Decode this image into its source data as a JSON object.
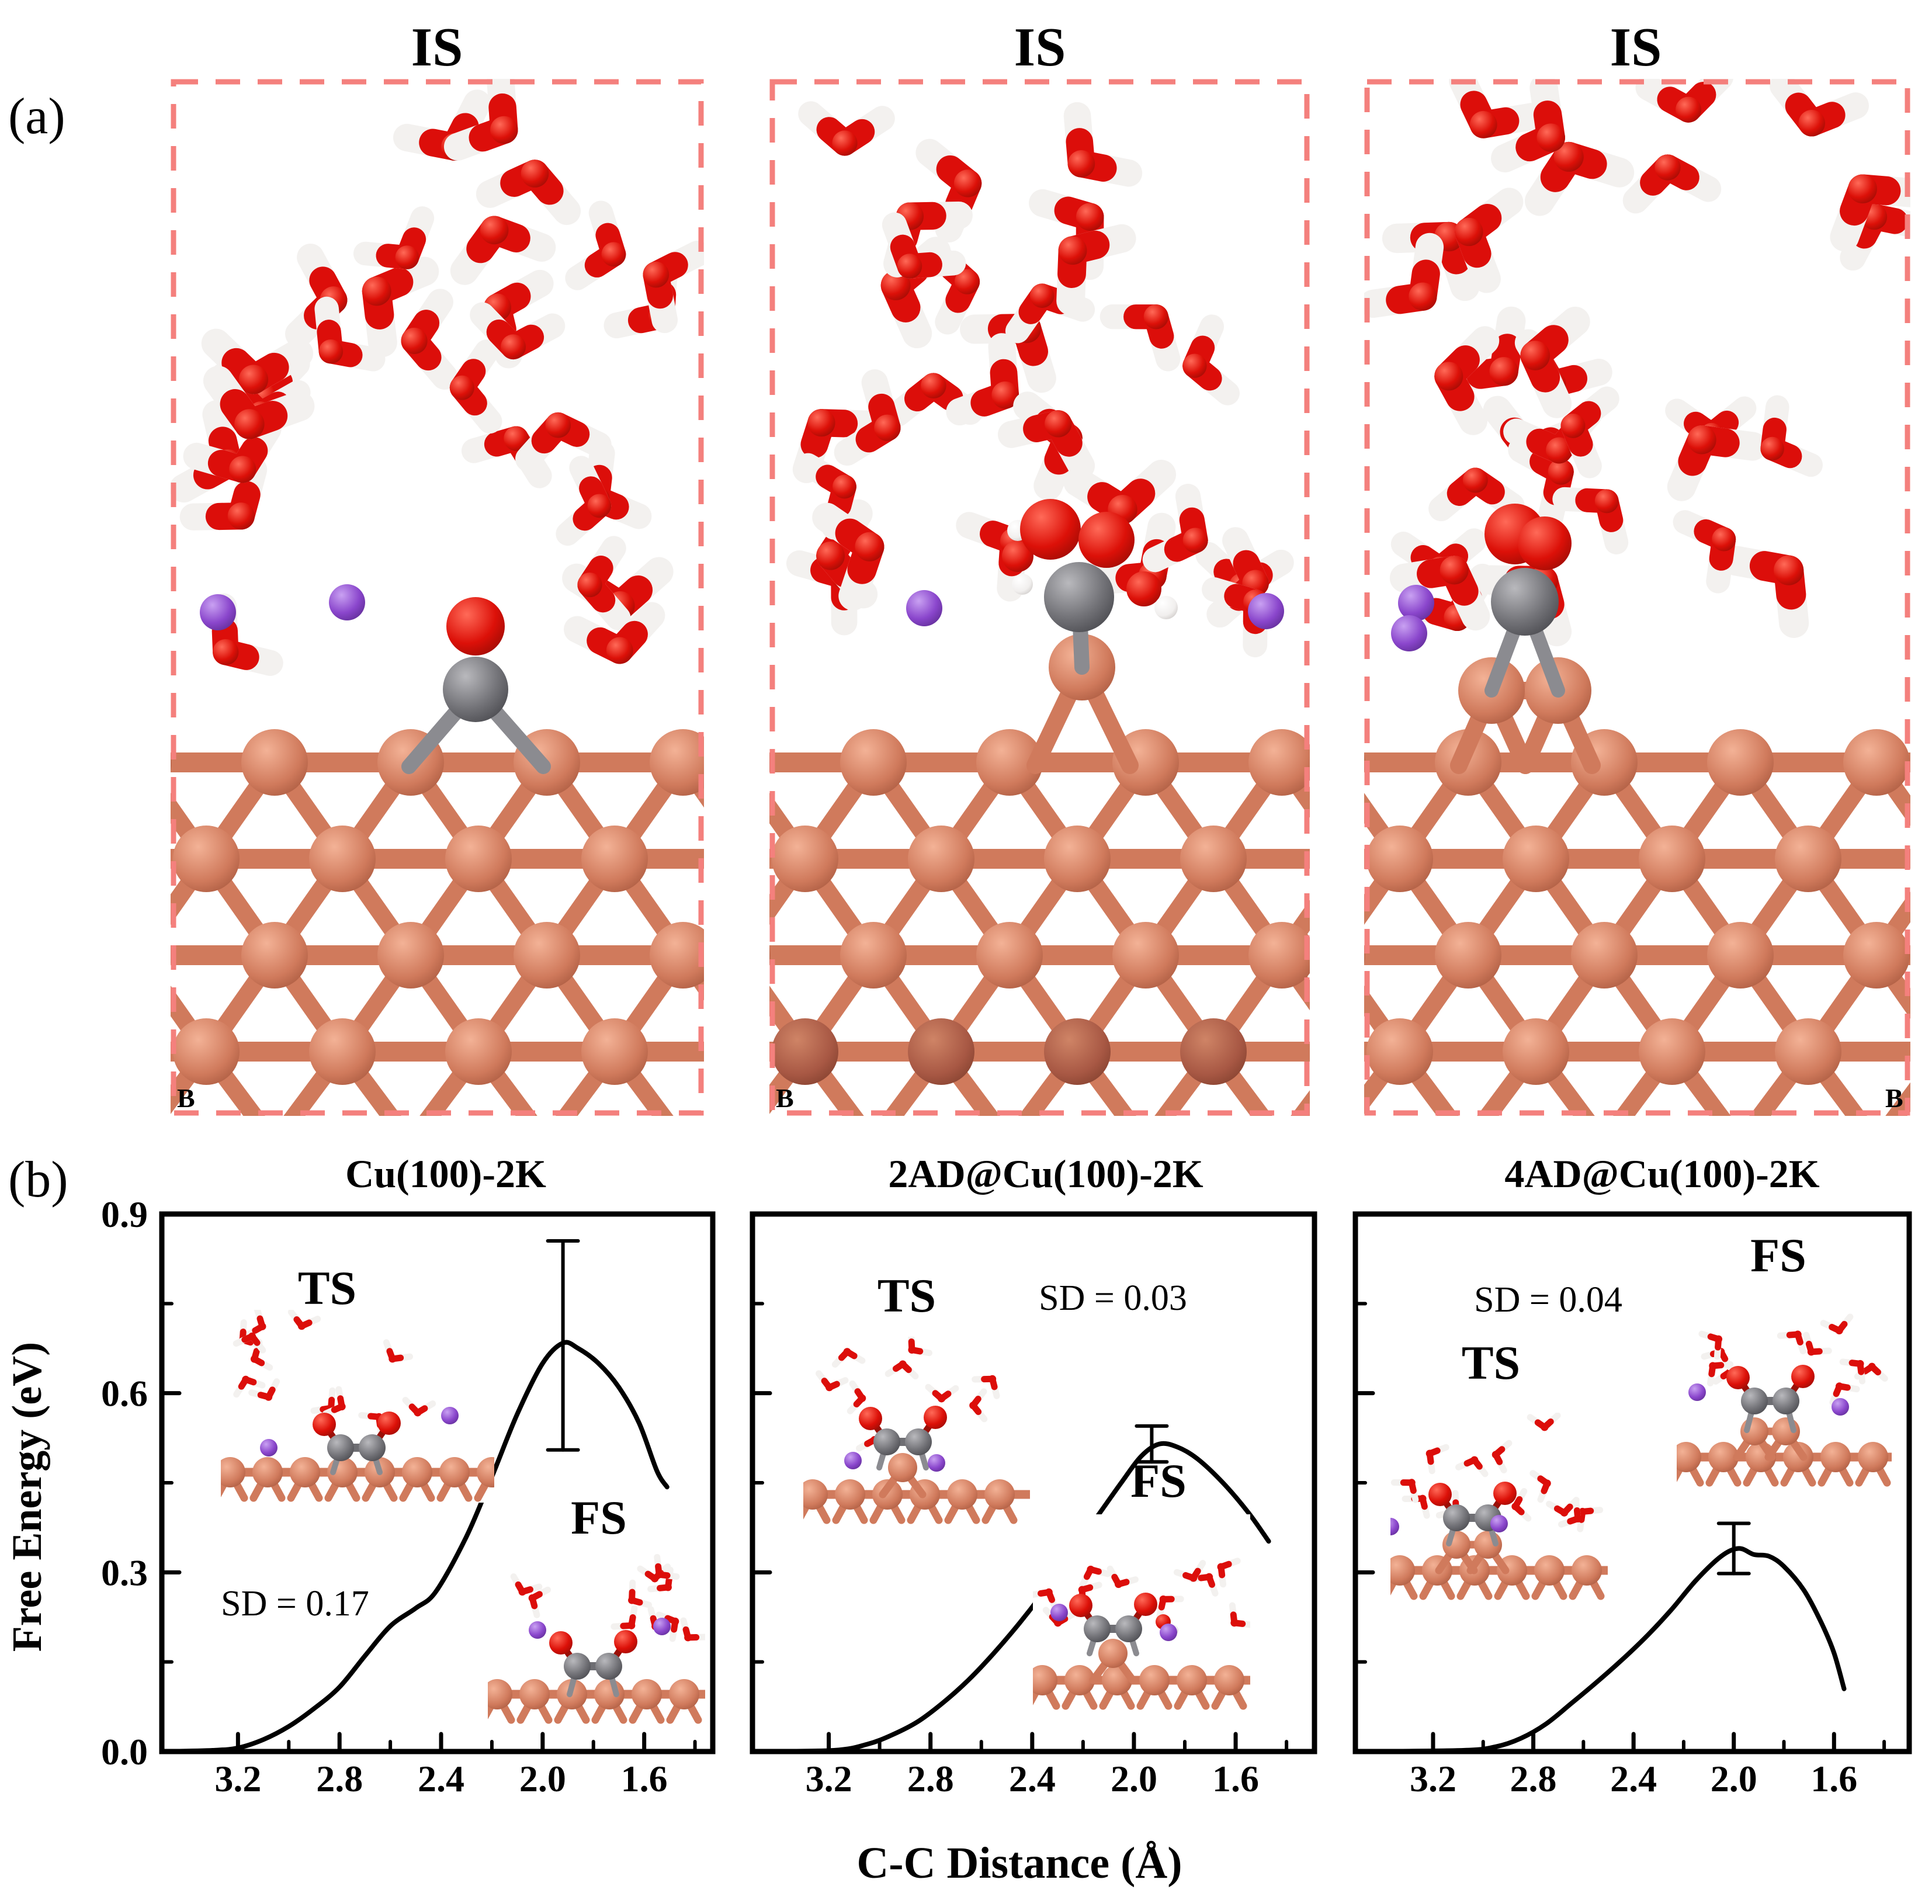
{
  "figure": {
    "panel_a": {
      "label": "(a)",
      "boxes": [
        {
          "title": "IS",
          "corner_label": "B",
          "corner": "bl",
          "adsorbate": "CO",
          "ion_count": 2
        },
        {
          "title": "IS",
          "corner_label": "B",
          "corner": "bl",
          "adsorbate": "CO2 + OH",
          "ion_count": 2
        },
        {
          "title": "IS",
          "corner_label": "B",
          "corner": "br",
          "adsorbate": "CO2",
          "ion_count": 2
        }
      ],
      "colors": {
        "oxygen": "#dc0e0a",
        "hydrogen": "#f3f1ef",
        "potassium": "#8a46cc",
        "carbon": "#737378",
        "copper": "#d07a5c",
        "copper_dark": "#a85844",
        "box_border": "#f4807d",
        "corner_label_color": "#ffe600"
      }
    },
    "panel_b": {
      "label": "(b)",
      "xlabel": "C-C Distance (Å)",
      "ylabel": "Free Energy (eV)"
    }
  },
  "chart_data": [
    {
      "type": "line",
      "title": "Cu(100)-2K",
      "annotations": {
        "ts": "TS",
        "fs": "FS",
        "sd": "SD = 0.17"
      },
      "xlabel": "C-C Distance (Å)",
      "ylabel": "Free Energy (eV)",
      "xlim": [
        3.5,
        1.33
      ],
      "ylim": [
        0,
        0.9
      ],
      "x_ticks": [
        3.2,
        2.8,
        2.4,
        2.0,
        1.6
      ],
      "x_tick_labels": [
        "3.2",
        "2.8",
        "2.4",
        "2.0",
        "1.6"
      ],
      "x_minor_ticks": [
        3.0,
        2.6,
        2.2,
        1.8,
        1.4
      ],
      "y_ticks": [
        0.0,
        0.3,
        0.6,
        0.9
      ],
      "y_tick_labels": [
        "0.0",
        "0.3",
        "0.6",
        "0.9"
      ],
      "y_minor_ticks": [
        0.15,
        0.45,
        0.75
      ],
      "y_tick_labels_visible": true,
      "grid": false,
      "curve": [
        [
          3.49,
          0
        ],
        [
          3.3,
          0.002
        ],
        [
          3.2,
          0.006
        ],
        [
          3.1,
          0.02
        ],
        [
          3.0,
          0.042
        ],
        [
          2.9,
          0.072
        ],
        [
          2.8,
          0.108
        ],
        [
          2.7,
          0.16
        ],
        [
          2.6,
          0.21
        ],
        [
          2.5,
          0.24
        ],
        [
          2.42,
          0.268
        ],
        [
          2.3,
          0.36
        ],
        [
          2.2,
          0.46
        ],
        [
          2.1,
          0.565
        ],
        [
          2.0,
          0.65
        ],
        [
          1.92,
          0.684
        ],
        [
          1.86,
          0.675
        ],
        [
          1.78,
          0.65
        ],
        [
          1.7,
          0.61
        ],
        [
          1.62,
          0.55
        ],
        [
          1.55,
          0.47
        ],
        [
          1.51,
          0.443
        ]
      ],
      "error_bar": {
        "x": 1.92,
        "y": 0.68,
        "half": 0.175
      }
    },
    {
      "type": "line",
      "title": "2AD@Cu(100)-2K",
      "annotations": {
        "ts": "TS",
        "fs": "FS",
        "sd": "SD = 0.03"
      },
      "xlabel": "C-C Distance (Å)",
      "ylabel": "Free Energy (eV)",
      "xlim": [
        3.5,
        1.29
      ],
      "ylim": [
        0,
        0.9
      ],
      "x_ticks": [
        3.2,
        2.8,
        2.4,
        2.0,
        1.6
      ],
      "x_tick_labels": [
        "3.2",
        "2.8",
        "2.4",
        "2.0",
        "1.6"
      ],
      "x_minor_ticks": [
        3.0,
        2.6,
        2.2,
        1.8,
        1.4
      ],
      "y_ticks": [
        0.0,
        0.3,
        0.6,
        0.9
      ],
      "y_tick_labels": [
        "0.0",
        "0.3",
        "0.6",
        "0.9"
      ],
      "y_minor_ticks": [
        0.15,
        0.45,
        0.75
      ],
      "y_tick_labels_visible": false,
      "grid": false,
      "curve": [
        [
          3.49,
          0
        ],
        [
          3.18,
          0.002
        ],
        [
          3.05,
          0.012
        ],
        [
          2.95,
          0.028
        ],
        [
          2.85,
          0.05
        ],
        [
          2.75,
          0.082
        ],
        [
          2.65,
          0.12
        ],
        [
          2.55,
          0.165
        ],
        [
          2.45,
          0.215
        ],
        [
          2.35,
          0.27
        ],
        [
          2.25,
          0.33
        ],
        [
          2.15,
          0.39
        ],
        [
          2.05,
          0.45
        ],
        [
          1.97,
          0.495
        ],
        [
          1.9,
          0.515
        ],
        [
          1.83,
          0.51
        ],
        [
          1.75,
          0.49
        ],
        [
          1.65,
          0.45
        ],
        [
          1.55,
          0.4
        ],
        [
          1.47,
          0.352
        ]
      ],
      "error_bar": {
        "x": 1.93,
        "y": 0.515,
        "half": 0.03
      }
    },
    {
      "type": "line",
      "title": "4AD@Cu(100)-2K",
      "annotations": {
        "ts": "TS",
        "fs": "FS",
        "sd": "SD = 0.04"
      },
      "xlabel": "C-C Distance (Å)",
      "ylabel": "Free Energy (eV)",
      "xlim": [
        3.51,
        1.3
      ],
      "ylim": [
        0,
        0.9
      ],
      "x_ticks": [
        3.2,
        2.8,
        2.4,
        2.0,
        1.6
      ],
      "x_tick_labels": [
        "3.2",
        "2.8",
        "2.4",
        "2.0",
        "1.6"
      ],
      "x_minor_ticks": [
        3.0,
        2.6,
        2.2,
        1.8,
        1.4
      ],
      "y_ticks": [
        0.0,
        0.3,
        0.6,
        0.9
      ],
      "y_tick_labels": [
        "0.0",
        "0.3",
        "0.6",
        "0.9"
      ],
      "y_minor_ticks": [
        0.15,
        0.45,
        0.75
      ],
      "y_tick_labels_visible": false,
      "grid": false,
      "curve": [
        [
          3.5,
          0
        ],
        [
          3.08,
          0.002
        ],
        [
          2.95,
          0.008
        ],
        [
          2.85,
          0.022
        ],
        [
          2.75,
          0.046
        ],
        [
          2.65,
          0.08
        ],
        [
          2.55,
          0.115
        ],
        [
          2.45,
          0.152
        ],
        [
          2.35,
          0.192
        ],
        [
          2.25,
          0.237
        ],
        [
          2.15,
          0.287
        ],
        [
          2.05,
          0.327
        ],
        [
          1.98,
          0.34
        ],
        [
          1.92,
          0.33
        ],
        [
          1.86,
          0.327
        ],
        [
          1.8,
          0.31
        ],
        [
          1.72,
          0.27
        ],
        [
          1.65,
          0.215
        ],
        [
          1.6,
          0.165
        ],
        [
          1.56,
          0.105
        ]
      ],
      "error_bar": {
        "x": 2.0,
        "y": 0.34,
        "half": 0.042
      }
    }
  ]
}
